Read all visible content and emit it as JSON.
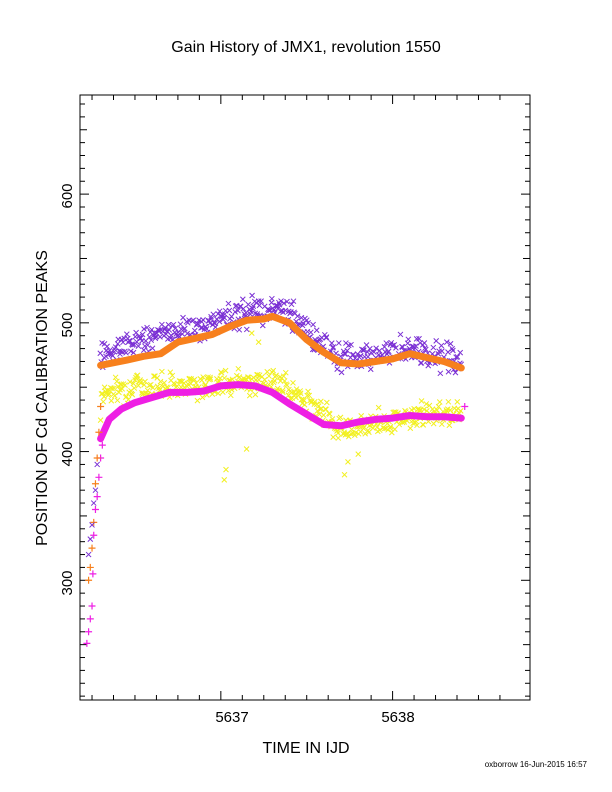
{
  "chart_data": {
    "type": "scatter",
    "title": "Gain History of JMX1, revolution 1550",
    "xlabel": "TIME IN IJD",
    "ylabel": "POSITION OF Cd CALIBRATION PEAKS",
    "xlim": [
      5636.18,
      5638.8
    ],
    "ylim": [
      207,
      677
    ],
    "x_ticks": [
      "5637",
      "5638"
    ],
    "y_ticks": [
      "300",
      "400",
      "500",
      "600"
    ],
    "footer": "oxborrow 16-Jun-2015 16:57",
    "colors": {
      "purple": "#7a2fd4",
      "orange": "#f7801d",
      "magenta": "#ee1fe4",
      "yellow": "#f2f020"
    },
    "series": [
      {
        "marker": "cross",
        "color": "#7a2fd4",
        "band": [
          [
            5636.3,
            478
          ],
          [
            5636.5,
            484
          ],
          [
            5636.7,
            492
          ],
          [
            5636.9,
            497
          ],
          [
            5637.05,
            505
          ],
          [
            5637.2,
            510
          ],
          [
            5637.35,
            510
          ],
          [
            5637.5,
            495
          ],
          [
            5637.7,
            472
          ],
          [
            5637.9,
            474
          ],
          [
            5638.1,
            478
          ],
          [
            5638.3,
            474
          ],
          [
            5638.4,
            470
          ]
        ],
        "spread": 10
      },
      {
        "marker": "cross",
        "color": "#f2f020",
        "band": [
          [
            5636.3,
            445
          ],
          [
            5636.5,
            450
          ],
          [
            5636.7,
            452
          ],
          [
            5636.9,
            452
          ],
          [
            5637.05,
            454
          ],
          [
            5637.2,
            455
          ],
          [
            5637.35,
            453
          ],
          [
            5637.5,
            440
          ],
          [
            5637.7,
            418
          ],
          [
            5637.9,
            423
          ],
          [
            5638.1,
            427
          ],
          [
            5638.3,
            430
          ],
          [
            5638.4,
            430
          ]
        ],
        "spread": 9,
        "outliers": [
          [
            5637.02,
            378
          ],
          [
            5637.03,
            386
          ],
          [
            5637.15,
            402
          ],
          [
            5637.72,
            382
          ],
          [
            5637.74,
            392
          ],
          [
            5637.8,
            398
          ],
          [
            5637.18,
            492
          ],
          [
            5637.22,
            485
          ]
        ]
      },
      {
        "marker": "line",
        "color": "#f7801d",
        "x": [
          5636.3,
          5636.45,
          5636.55,
          5636.65,
          5636.75,
          5636.85,
          5636.95,
          5637.05,
          5637.15,
          5637.25,
          5637.3,
          5637.4,
          5637.5,
          5637.6,
          5637.7,
          5637.8,
          5637.9,
          5638.0,
          5638.1,
          5638.2,
          5638.3,
          5638.4
        ],
        "y": [
          467,
          471,
          474,
          476,
          485,
          488,
          491,
          497,
          502,
          503,
          505,
          500,
          487,
          477,
          469,
          468,
          470,
          472,
          476,
          473,
          470,
          465
        ]
      },
      {
        "marker": "line",
        "color": "#ee1fe4",
        "x": [
          5636.3,
          5636.35,
          5636.42,
          5636.5,
          5636.6,
          5636.7,
          5636.8,
          5636.9,
          5637.0,
          5637.1,
          5637.2,
          5637.3,
          5637.4,
          5637.5,
          5637.6,
          5637.7,
          5637.8,
          5637.9,
          5638.0,
          5638.1,
          5638.2,
          5638.3,
          5638.4
        ],
        "y": [
          410,
          425,
          433,
          438,
          442,
          446,
          446,
          447,
          451,
          452,
          451,
          446,
          437,
          429,
          421,
          420,
          423,
          425,
          426,
          428,
          427,
          427,
          426
        ]
      },
      {
        "marker": "plus",
        "color": "#ee1fe4",
        "x": [
          5636.22,
          5636.23,
          5636.24,
          5636.25,
          5636.255,
          5636.26,
          5636.27,
          5636.28,
          5636.29,
          5636.3,
          5636.31,
          5638.42
        ],
        "y": [
          251,
          260,
          270,
          280,
          305,
          335,
          355,
          365,
          380,
          395,
          405,
          435
        ]
      },
      {
        "marker": "plus",
        "color": "#f7801d",
        "x": [
          5636.23,
          5636.24,
          5636.25,
          5636.26,
          5636.27,
          5636.28,
          5636.29,
          5636.3
        ],
        "y": [
          300,
          310,
          325,
          345,
          375,
          395,
          415,
          435
        ]
      },
      {
        "marker": "cross",
        "color": "#7a2fd4",
        "x": [
          5636.23,
          5636.24,
          5636.25,
          5636.26,
          5636.27,
          5636.28
        ],
        "y": [
          320,
          332,
          343,
          360,
          370,
          390
        ]
      }
    ]
  }
}
